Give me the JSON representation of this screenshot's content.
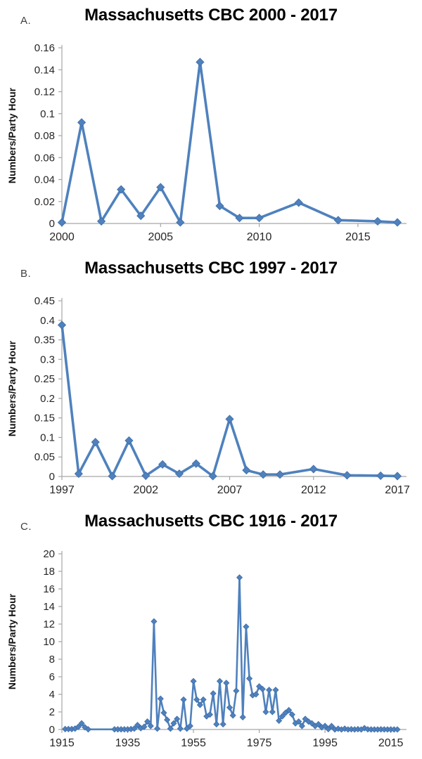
{
  "figure": {
    "background": "#ffffff",
    "description_visible_text_only": true
  },
  "colors": {
    "series_line": "#4f81bd",
    "marker_fill": "#4f81bd",
    "marker_edge": "#3e6da8",
    "axis_line": "#a6a6a6",
    "tick_text": "#262626",
    "title_text": "#000000",
    "panel_label_text": "#3f3f3f"
  },
  "chart_data": [
    {
      "type": "line",
      "panel_label": "A.",
      "title": "Massachusetts CBC 2000 - 2017",
      "xlabel": "",
      "ylabel": "Numbers/Party Hour",
      "legend": "none",
      "grid": false,
      "x_range": [
        2000,
        2017
      ],
      "ylim": [
        0,
        0.16
      ],
      "x_ticks": [
        2000,
        2005,
        2010,
        2015
      ],
      "y_ticks": [
        "0.16",
        "0.14",
        "0.12",
        "0.1",
        "0.08",
        "0.06",
        "0.04",
        "0.02",
        "0"
      ],
      "marker_size": 5.5,
      "line_width": 3.6,
      "series": [
        {
          "name": "Numbers/Party Hour",
          "x": [
            2000,
            2001,
            2002,
            2003,
            2004,
            2005,
            2006,
            2007,
            2008,
            2009,
            2010,
            2012,
            2014,
            2016,
            2017
          ],
          "y": [
            0.001,
            0.092,
            0.002,
            0.031,
            0.007,
            0.033,
            0.001,
            0.147,
            0.016,
            0.005,
            0.005,
            0.019,
            0.003,
            0.002,
            0.001
          ]
        }
      ]
    },
    {
      "type": "line",
      "panel_label": "B.",
      "title": "Massachusetts CBC 1997 - 2017",
      "xlabel": "",
      "ylabel": "Numbers/Party Hour",
      "legend": "none",
      "grid": false,
      "x_range": [
        1997,
        2017
      ],
      "ylim": [
        0,
        0.45
      ],
      "x_ticks": [
        1997,
        2002,
        2007,
        2012,
        2017
      ],
      "y_ticks": [
        "0.45",
        "0.4",
        "0.35",
        "0.3",
        "0.25",
        "0.2",
        "0.15",
        "0.1",
        "0.05",
        "0"
      ],
      "marker_size": 5.5,
      "line_width": 3.6,
      "series": [
        {
          "name": "Numbers/Party Hour",
          "x": [
            1997,
            1998,
            1999,
            2000,
            2001,
            2002,
            2003,
            2004,
            2005,
            2006,
            2007,
            2008,
            2009,
            2010,
            2012,
            2014,
            2016,
            2017
          ],
          "y": [
            0.388,
            0.007,
            0.088,
            0.001,
            0.092,
            0.002,
            0.031,
            0.007,
            0.033,
            0.001,
            0.147,
            0.016,
            0.005,
            0.005,
            0.019,
            0.003,
            0.002,
            0.001
          ]
        }
      ]
    },
    {
      "type": "line",
      "panel_label": "C.",
      "title": "Massachusetts CBC 1916 - 2017",
      "xlabel": "",
      "ylabel": "Numbers/Party Hour",
      "legend": "none",
      "grid": false,
      "x_range": [
        1915,
        2017
      ],
      "ylim": [
        0,
        20
      ],
      "x_ticks": [
        1915,
        1935,
        1955,
        1975,
        1995,
        2015
      ],
      "y_ticks": [
        "20",
        "18",
        "16",
        "14",
        "12",
        "10",
        "8",
        "6",
        "4",
        "2",
        "0"
      ],
      "marker_size": 4,
      "line_width": 2.6,
      "series": [
        {
          "name": "Numbers/Party Hour",
          "x": [
            1916,
            1917,
            1918,
            1919,
            1920,
            1921,
            1922,
            1923,
            1931,
            1932,
            1933,
            1934,
            1935,
            1936,
            1937,
            1938,
            1939,
            1940,
            1941,
            1942,
            1943,
            1944,
            1945,
            1946,
            1947,
            1948,
            1949,
            1950,
            1951,
            1952,
            1953,
            1954,
            1955,
            1956,
            1957,
            1958,
            1959,
            1960,
            1961,
            1962,
            1963,
            1964,
            1965,
            1966,
            1967,
            1968,
            1969,
            1970,
            1971,
            1972,
            1973,
            1974,
            1975,
            1976,
            1977,
            1978,
            1979,
            1980,
            1981,
            1982,
            1983,
            1984,
            1985,
            1986,
            1987,
            1988,
            1989,
            1990,
            1991,
            1992,
            1993,
            1994,
            1995,
            1996,
            1997,
            1998,
            1999,
            2000,
            2001,
            2002,
            2003,
            2004,
            2005,
            2006,
            2007,
            2008,
            2009,
            2010,
            2011,
            2012,
            2013,
            2014,
            2015,
            2016,
            2017
          ],
          "y": [
            0.05,
            0.05,
            0.05,
            0.1,
            0.3,
            0.7,
            0.25,
            0.02,
            0.02,
            0.02,
            0.02,
            0.02,
            0.02,
            0.05,
            0.1,
            0.5,
            0.15,
            0.3,
            0.9,
            0.4,
            12.3,
            0.1,
            3.5,
            1.9,
            1.1,
            0.1,
            0.7,
            1.2,
            0.1,
            3.4,
            0.1,
            0.4,
            5.5,
            3.4,
            2.8,
            3.4,
            1.5,
            1.7,
            4.1,
            0.6,
            5.5,
            0.6,
            5.3,
            2.5,
            1.6,
            4.4,
            17.3,
            1.4,
            11.7,
            5.8,
            3.9,
            4.0,
            4.9,
            4.6,
            2.0,
            4.5,
            2.0,
            4.5,
            1.0,
            1.5,
            1.9,
            2.2,
            1.7,
            0.7,
            0.9,
            0.4,
            1.2,
            0.9,
            0.7,
            0.4,
            0.6,
            0.25,
            0.4,
            0.05,
            0.39,
            0.01,
            0.09,
            0.001,
            0.09,
            0.002,
            0.03,
            0.007,
            0.033,
            0.001,
            0.15,
            0.016,
            0.005,
            0.005,
            0.005,
            0.02,
            0.01,
            0.003,
            0.01,
            0.002,
            0.001
          ]
        }
      ],
      "note_no_markers_years": "1924-1930 (flat line segment connects 1923 to 1931)"
    }
  ]
}
